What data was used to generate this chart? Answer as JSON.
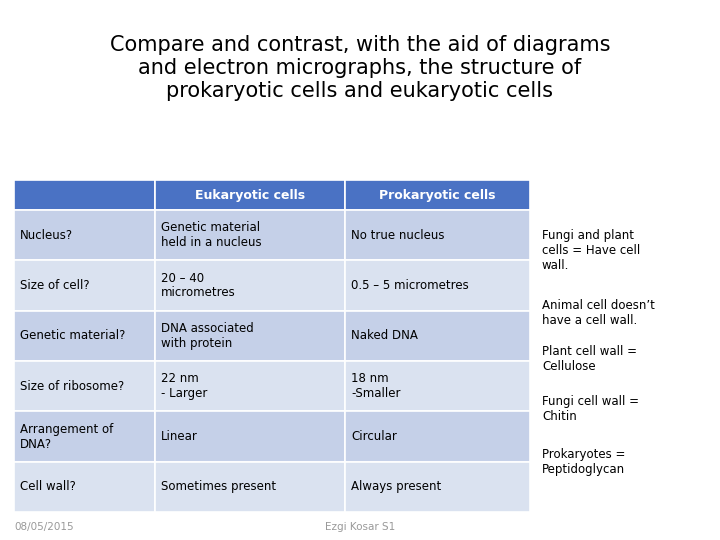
{
  "title": "Compare and contrast, with the aid of diagrams\nand electron micrographs, the structure of\nprokaryotic cells and eukaryotic cells",
  "title_fontsize": 15,
  "bg_color": "#ffffff",
  "header_color": "#4A72C4",
  "row_color_odd": "#C5D0E8",
  "row_color_even": "#DAE2F0",
  "header_text_color": "#ffffff",
  "cell_text_color": "#000000",
  "col0_header": "",
  "col1_header": "Eukaryotic cells",
  "col2_header": "Prokaryotic cells",
  "rows": [
    [
      "Nucleus?",
      "Genetic material\nheld in a nucleus",
      "No true nucleus"
    ],
    [
      "Size of cell?",
      "20 – 40\nmicrometres",
      "0.5 – 5 micrometres"
    ],
    [
      "Genetic material?",
      "DNA associated\nwith protein",
      "Naked DNA"
    ],
    [
      "Size of ribosome?",
      "22 nm\n- Larger",
      "18 nm\n-Smaller"
    ],
    [
      "Arrangement of\nDNA?",
      "Linear",
      "Circular"
    ],
    [
      "Cell wall?",
      "Sometimes present",
      "Always present"
    ]
  ],
  "side_notes": [
    "Fungi and plant\ncells = Have cell\nwall.",
    "Animal cell doesn’t\nhave a cell wall.",
    "Plant cell wall =\nCellulose",
    "Fungi cell wall =\nChitin",
    "Prokaryotes =\nPeptidoglycan"
  ],
  "footer_left": "08/05/2015",
  "footer_center": "Ezgi Kosar S1"
}
